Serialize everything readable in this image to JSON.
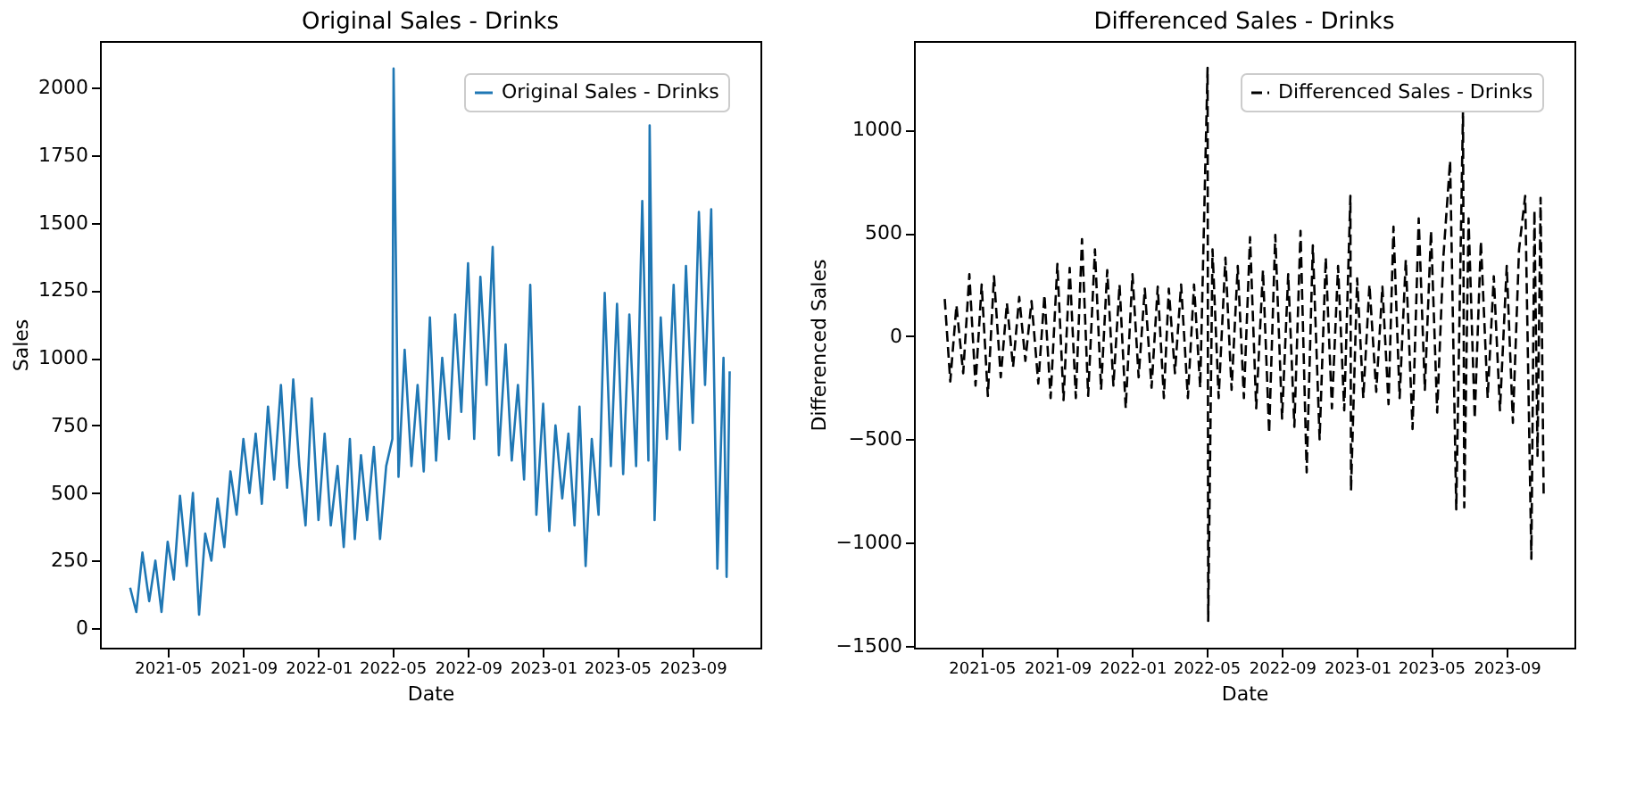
{
  "chart_data": [
    {
      "type": "line",
      "title": "Original Sales - Drinks",
      "xlabel": "Date",
      "ylabel": "Sales",
      "legend": "top right",
      "grid": false,
      "xlim": [
        "2021-01-11",
        "2023-12-20"
      ],
      "xticks": [
        "2021-05",
        "2021-09",
        "2022-01",
        "2022-05",
        "2022-09",
        "2023-01",
        "2023-05",
        "2023-09"
      ],
      "ylim": [
        -72,
        2172
      ],
      "yticks": [
        0,
        250,
        500,
        750,
        1000,
        1250,
        1500,
        1750,
        2000
      ],
      "series": [
        {
          "name": "Original Sales - Drinks",
          "color": "#1f77b4",
          "line_style": "solid",
          "x": [
            "2021-03-01",
            "2021-03-11",
            "2021-03-21",
            "2021-04-01",
            "2021-04-11",
            "2021-04-21",
            "2021-05-01",
            "2021-05-11",
            "2021-05-21",
            "2021-06-01",
            "2021-06-11",
            "2021-06-21",
            "2021-07-01",
            "2021-07-11",
            "2021-07-21",
            "2021-08-01",
            "2021-08-11",
            "2021-08-21",
            "2021-09-01",
            "2021-09-11",
            "2021-09-21",
            "2021-10-01",
            "2021-10-11",
            "2021-10-21",
            "2021-11-01",
            "2021-11-11",
            "2021-11-21",
            "2021-12-01",
            "2021-12-11",
            "2021-12-21",
            "2022-01-01",
            "2022-01-11",
            "2022-01-21",
            "2022-02-01",
            "2022-02-11",
            "2022-02-21",
            "2022-03-01",
            "2022-03-11",
            "2022-03-21",
            "2022-04-01",
            "2022-04-11",
            "2022-04-21",
            "2022-05-01",
            "2022-05-03",
            "2022-05-11",
            "2022-05-21",
            "2022-06-01",
            "2022-06-11",
            "2022-06-21",
            "2022-07-01",
            "2022-07-11",
            "2022-07-21",
            "2022-08-01",
            "2022-08-11",
            "2022-08-21",
            "2022-09-01",
            "2022-09-11",
            "2022-09-21",
            "2022-10-01",
            "2022-10-11",
            "2022-10-21",
            "2022-11-01",
            "2022-11-11",
            "2022-11-21",
            "2022-12-01",
            "2022-12-11",
            "2022-12-21",
            "2023-01-01",
            "2023-01-11",
            "2023-01-21",
            "2023-02-01",
            "2023-02-11",
            "2023-02-21",
            "2023-03-01",
            "2023-03-11",
            "2023-03-21",
            "2023-04-01",
            "2023-04-11",
            "2023-04-21",
            "2023-05-01",
            "2023-05-11",
            "2023-05-21",
            "2023-06-01",
            "2023-06-11",
            "2023-06-21",
            "2023-06-23",
            "2023-07-01",
            "2023-07-11",
            "2023-07-21",
            "2023-08-01",
            "2023-08-11",
            "2023-08-21",
            "2023-09-01",
            "2023-09-11",
            "2023-09-21",
            "2023-10-01",
            "2023-10-11",
            "2023-10-21",
            "2023-10-26",
            "2023-10-31"
          ],
          "values": [
            150,
            60,
            280,
            100,
            250,
            60,
            320,
            180,
            490,
            230,
            500,
            50,
            350,
            250,
            480,
            300,
            580,
            420,
            700,
            500,
            720,
            460,
            820,
            550,
            900,
            520,
            920,
            600,
            380,
            850,
            400,
            720,
            380,
            600,
            300,
            700,
            330,
            640,
            400,
            670,
            330,
            600,
            700,
            2070,
            560,
            1030,
            600,
            900,
            580,
            1150,
            620,
            1000,
            700,
            1160,
            800,
            1350,
            700,
            1300,
            900,
            1410,
            640,
            1050,
            620,
            900,
            550,
            1270,
            420,
            830,
            360,
            750,
            480,
            720,
            380,
            820,
            230,
            700,
            420,
            1240,
            600,
            1200,
            570,
            1160,
            600,
            1580,
            620,
            1860,
            400,
            1150,
            700,
            1270,
            660,
            1340,
            760,
            1540,
            900,
            1550,
            220,
            1000,
            190,
            950
          ]
        }
      ]
    },
    {
      "type": "line",
      "title": "Differenced Sales - Drinks",
      "xlabel": "Date",
      "ylabel": "Differenced Sales",
      "legend": "top right",
      "grid": false,
      "xlim": [
        "2021-01-11",
        "2023-12-20"
      ],
      "xticks": [
        "2021-05",
        "2021-09",
        "2022-01",
        "2022-05",
        "2022-09",
        "2023-01",
        "2023-05",
        "2023-09"
      ],
      "ylim": [
        -1510,
        1430
      ],
      "yticks": [
        {
          "value": -1500,
          "label": "−1500"
        },
        {
          "value": -1000,
          "label": "−1000"
        },
        {
          "value": -500,
          "label": "−500"
        },
        0,
        500,
        1000
      ],
      "series": [
        {
          "name": "Differenced Sales - Drinks",
          "color": "#000000",
          "line_style": "dashed",
          "x": [
            "2021-03-02",
            "2021-03-11",
            "2021-03-21",
            "2021-04-01",
            "2021-04-11",
            "2021-04-21",
            "2021-05-01",
            "2021-05-11",
            "2021-05-21",
            "2021-06-01",
            "2021-06-11",
            "2021-06-21",
            "2021-07-01",
            "2021-07-11",
            "2021-07-21",
            "2021-08-01",
            "2021-08-11",
            "2021-08-21",
            "2021-09-01",
            "2021-09-11",
            "2021-09-21",
            "2021-10-01",
            "2021-10-11",
            "2021-10-21",
            "2021-11-01",
            "2021-11-11",
            "2021-11-21",
            "2021-12-01",
            "2021-12-11",
            "2021-12-21",
            "2022-01-01",
            "2022-01-11",
            "2022-01-21",
            "2022-02-01",
            "2022-02-11",
            "2022-02-21",
            "2022-03-01",
            "2022-03-11",
            "2022-03-21",
            "2022-04-01",
            "2022-04-11",
            "2022-04-21",
            "2022-05-03",
            "2022-05-04",
            "2022-05-11",
            "2022-05-21",
            "2022-06-01",
            "2022-06-11",
            "2022-06-21",
            "2022-07-01",
            "2022-07-11",
            "2022-07-21",
            "2022-08-01",
            "2022-08-11",
            "2022-08-21",
            "2022-09-01",
            "2022-09-11",
            "2022-09-21",
            "2022-10-01",
            "2022-10-11",
            "2022-10-21",
            "2022-11-01",
            "2022-11-11",
            "2022-11-21",
            "2022-12-01",
            "2022-12-11",
            "2022-12-21",
            "2022-12-22",
            "2023-01-01",
            "2023-01-11",
            "2023-01-21",
            "2023-02-01",
            "2023-02-11",
            "2023-02-21",
            "2023-03-01",
            "2023-03-11",
            "2023-03-21",
            "2023-04-01",
            "2023-04-11",
            "2023-04-21",
            "2023-05-01",
            "2023-05-11",
            "2023-05-21",
            "2023-06-01",
            "2023-06-11",
            "2023-06-22",
            "2023-06-24",
            "2023-07-01",
            "2023-07-11",
            "2023-07-21",
            "2023-08-01",
            "2023-08-11",
            "2023-08-21",
            "2023-09-01",
            "2023-09-11",
            "2023-09-21",
            "2023-10-01",
            "2023-10-11",
            "2023-10-16",
            "2023-10-21",
            "2023-10-26",
            "2023-10-31"
          ],
          "values": [
            180,
            -220,
            150,
            -180,
            300,
            -240,
            250,
            -290,
            290,
            -200,
            160,
            -150,
            190,
            -120,
            170,
            -230,
            200,
            -300,
            350,
            -310,
            330,
            -300,
            470,
            -290,
            420,
            -260,
            320,
            -240,
            250,
            -350,
            300,
            -200,
            230,
            -250,
            240,
            -300,
            230,
            -180,
            250,
            -300,
            250,
            -250,
            1300,
            -1380,
            420,
            -300,
            380,
            -260,
            340,
            -300,
            480,
            -350,
            320,
            -470,
            490,
            -400,
            300,
            -440,
            510,
            -660,
            440,
            -500,
            380,
            -350,
            340,
            -360,
            680,
            -750,
            280,
            -300,
            250,
            -270,
            240,
            -330,
            530,
            -300,
            370,
            -450,
            570,
            -260,
            510,
            -370,
            380,
            850,
            -840,
            1100,
            -830,
            570,
            -400,
            460,
            -300,
            290,
            -360,
            340,
            -420,
            420,
            680,
            -1080,
            610,
            -580,
            670,
            -780
          ]
        }
      ]
    }
  ]
}
